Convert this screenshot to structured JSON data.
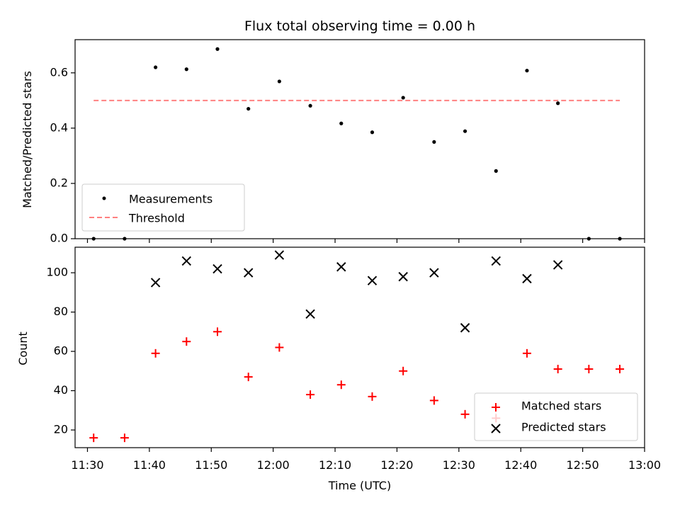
{
  "chart_data": {
    "title": "Flux total observing time = 0.00 h",
    "xlabel": "Time (UTC)",
    "x_ticks": [
      "11:30",
      "11:40",
      "11:50",
      "12:00",
      "12:10",
      "12:20",
      "12:30",
      "12:40",
      "12:50",
      "13:00"
    ],
    "x_times": [
      "11:31",
      "11:36",
      "11:41",
      "11:46",
      "11:51",
      "11:56",
      "12:01",
      "12:06",
      "12:11",
      "12:16",
      "12:21",
      "12:26",
      "12:31",
      "12:36",
      "12:41",
      "12:46",
      "12:51",
      "12:56"
    ],
    "xlim": [
      "11:28",
      "13:00"
    ],
    "panels": [
      {
        "type": "scatter",
        "ylabel": "Matched/Predicted stars",
        "ylim": [
          0,
          0.72
        ],
        "y_ticks": [
          0.0,
          0.2,
          0.4,
          0.6
        ],
        "y_tick_labels": [
          "0.0",
          "0.2",
          "0.4",
          "0.6"
        ],
        "series": [
          {
            "name": "Measurements",
            "marker": "dot",
            "color": "#000000",
            "values": [
              0.0,
              0.0,
              0.62,
              0.613,
              0.686,
              0.47,
              0.569,
              0.481,
              0.417,
              0.385,
              0.51,
              0.35,
              0.389,
              0.245,
              0.608,
              0.49,
              0.0,
              0.0
            ]
          }
        ],
        "threshold": {
          "name": "Threshold",
          "value": 0.5,
          "x_start": "11:31",
          "x_end": "12:56",
          "color": "#ff8080",
          "style": "dashed"
        },
        "legend": "lower-left"
      },
      {
        "type": "scatter",
        "ylabel": "Count",
        "ylim": [
          11,
          113
        ],
        "y_ticks": [
          20,
          40,
          60,
          80,
          100
        ],
        "y_tick_labels": [
          "20",
          "40",
          "60",
          "80",
          "100"
        ],
        "series": [
          {
            "name": "Matched stars",
            "marker": "plus",
            "color": "#ff0000",
            "values": [
              16,
              16,
              59,
              65,
              70,
              47,
              62,
              38,
              43,
              37,
              50,
              35,
              28,
              26,
              59,
              51,
              51,
              51
            ]
          },
          {
            "name": "Predicted stars",
            "marker": "x",
            "color": "#000000",
            "values": [
              null,
              null,
              95,
              106,
              102,
              100,
              109,
              79,
              103,
              96,
              98,
              100,
              72,
              106,
              97,
              104,
              null,
              null
            ]
          }
        ],
        "legend": "lower-right"
      }
    ]
  }
}
